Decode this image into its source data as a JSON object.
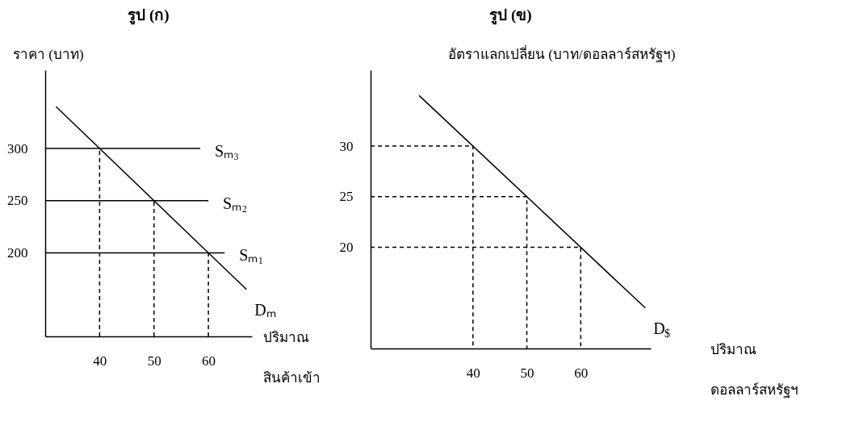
{
  "chart_data": [
    {
      "type": "line",
      "title": "รูป (ก)",
      "ylabel": "ราคา (บาท)",
      "xlabel": "ปริมาณ\nสินค้าเข้า",
      "xlim": [
        30,
        68
      ],
      "ylim": [
        120,
        375
      ],
      "xticks": [
        40,
        50,
        60
      ],
      "yticks": [
        200,
        250,
        300
      ],
      "line_style": "solid",
      "series": [
        {
          "name": "Sₘ₃",
          "color": "#000000",
          "x": [
            30,
            58.5
          ],
          "values": [
            300,
            300
          ]
        },
        {
          "name": "Sₘ₂",
          "color": "#000000",
          "x": [
            30,
            60
          ],
          "values": [
            250,
            250
          ]
        },
        {
          "name": "Sₘ₁",
          "color": "#000000",
          "x": [
            30,
            63
          ],
          "values": [
            200,
            200
          ]
        },
        {
          "name": "Dₘ",
          "color": "#000000",
          "x": [
            32,
            67
          ],
          "values": [
            340,
            165
          ]
        },
        {
          "color": "#000000",
          "line_style": "dashed",
          "x": [
            40,
            40
          ],
          "values": [
            120,
            300
          ]
        },
        {
          "color": "#000000",
          "line_style": "dashed",
          "x": [
            50,
            50
          ],
          "values": [
            120,
            250
          ]
        },
        {
          "color": "#000000",
          "line_style": "dashed",
          "x": [
            60,
            60
          ],
          "values": [
            120,
            200
          ]
        }
      ]
    },
    {
      "type": "line",
      "title": "รูป (ข)",
      "ylabel": "อัตราแลกเปลี่ยน (บาท/ดอลลาร์สหรัฐฯ)",
      "xlabel": "ปริมาณ\nดอลลาร์สหรัฐฯ",
      "xlim": [
        21,
        73
      ],
      "ylim": [
        10,
        37.5
      ],
      "xticks": [
        40,
        50,
        60
      ],
      "yticks": [
        20,
        25,
        30
      ],
      "line_style": "solid",
      "series": [
        {
          "name": "D$_{$}$",
          "color": "#000000",
          "x": [
            30,
            72
          ],
          "values": [
            35,
            14
          ]
        },
        {
          "color": "#000000",
          "line_style": "dashed",
          "x": [
            21,
            40,
            40
          ],
          "values": [
            30,
            30,
            10
          ]
        },
        {
          "color": "#000000",
          "line_style": "dashed",
          "x": [
            21,
            50,
            50
          ],
          "values": [
            25,
            25,
            10
          ]
        },
        {
          "color": "#000000",
          "line_style": "dashed",
          "x": [
            21,
            60,
            60
          ],
          "values": [
            20,
            20,
            10
          ]
        }
      ]
    }
  ]
}
